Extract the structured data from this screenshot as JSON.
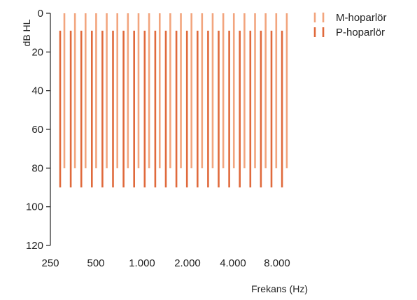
{
  "chart_data": {
    "type": "bar",
    "title": "",
    "xlabel": "Frekans (Hz)",
    "ylabel": "dB HL",
    "y_axis_inverted": true,
    "x_scale": "log",
    "ylim": [
      0,
      120
    ],
    "y_ticks": [
      0,
      20,
      40,
      60,
      80,
      100,
      120
    ],
    "x_tick_labels": [
      "250",
      "500",
      "1.000",
      "2.000",
      "4.000",
      "8.000"
    ],
    "legend_position": "top-right",
    "grid": false,
    "series": [
      {
        "name": "M-hoparlör",
        "color": "#f2a57e",
        "style": "dashed-range",
        "top": 0,
        "bottom": 80,
        "count": 22
      },
      {
        "name": "P-hoparlör",
        "color": "#e06a3c",
        "style": "dashed-range",
        "top": 9,
        "bottom": 90,
        "count": 22
      }
    ]
  }
}
